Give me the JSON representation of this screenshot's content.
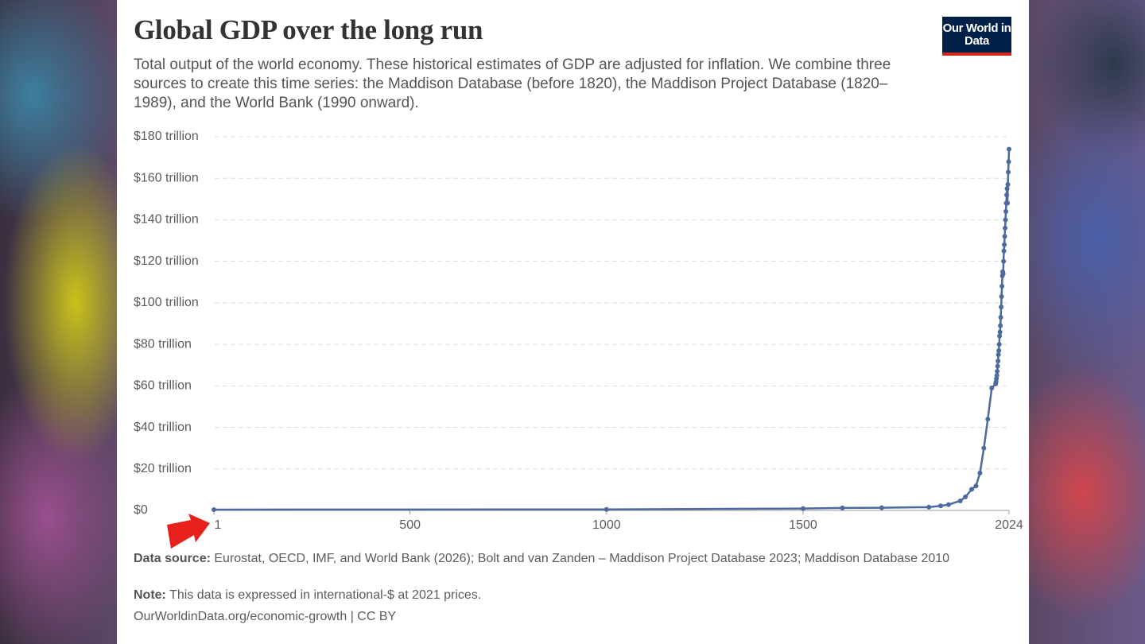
{
  "chart_data": {
    "type": "line",
    "title": "Global GDP over the long run",
    "subtitle": "Total output of the world economy. These historical estimates of GDP are adjusted for inflation. We combine three sources to create this time series: the Maddison Database (before 1820), the Maddison Project Database (1820–1989), and the World Bank (1990 onward).",
    "logo": "Our World in Data",
    "source_label": "Data source:",
    "source": "Eurostat, OECD, IMF, and World Bank (2026); Bolt and van Zanden – Maddison Project Database 2023; Maddison Database 2010",
    "note_label": "Note:",
    "note": "This data is expressed in international-$ at 2021 prices.",
    "url": "OurWorldinData.org/economic-growth | CC BY",
    "color": "#4c6a9c",
    "grid": true,
    "x": [
      1,
      1000,
      1500,
      1600,
      1700,
      1820,
      1850,
      1870,
      1900,
      1913,
      1929,
      1940,
      1950,
      1960,
      1970,
      1980,
      1990,
      1991,
      1992,
      1993,
      1994,
      1995,
      1996,
      1997,
      1998,
      1999,
      2000,
      2001,
      2002,
      2003,
      2004,
      2005,
      2006,
      2007,
      2008,
      2009,
      2010,
      2011,
      2012,
      2013,
      2014,
      2015,
      2016,
      2017,
      2018,
      2019,
      2020,
      2021,
      2022,
      2023,
      2024
    ],
    "values": [
      0.4,
      0.5,
      0.9,
      1.2,
      1.3,
      1.6,
      2.2,
      2.8,
      4.6,
      6.5,
      10.2,
      11.8,
      18,
      30,
      44,
      59,
      61,
      62,
      63.5,
      65,
      67,
      69.5,
      72,
      75,
      77,
      80,
      84,
      86,
      89,
      93,
      98,
      103,
      108,
      113,
      115,
      114,
      120,
      125,
      128,
      132,
      136,
      140,
      144,
      148,
      152,
      155,
      148,
      157,
      163,
      168,
      174
    ],
    "xlim": [
      1,
      2024
    ],
    "xticks": [
      1,
      500,
      1000,
      1500,
      2024
    ],
    "ylim": [
      0,
      180
    ],
    "yticks": [
      {
        "value": 0,
        "label": "$0"
      },
      {
        "value": 20,
        "label": "$20 trillion"
      },
      {
        "value": 40,
        "label": "$40 trillion"
      },
      {
        "value": 60,
        "label": "$60 trillion"
      },
      {
        "value": 80,
        "label": "$80 trillion"
      },
      {
        "value": 100,
        "label": "$100 trillion"
      },
      {
        "value": 120,
        "label": "$120 trillion"
      },
      {
        "value": 140,
        "label": "$140 trillion"
      },
      {
        "value": 160,
        "label": "$160 trillion"
      },
      {
        "value": 180,
        "label": "$180 trillion"
      }
    ]
  }
}
